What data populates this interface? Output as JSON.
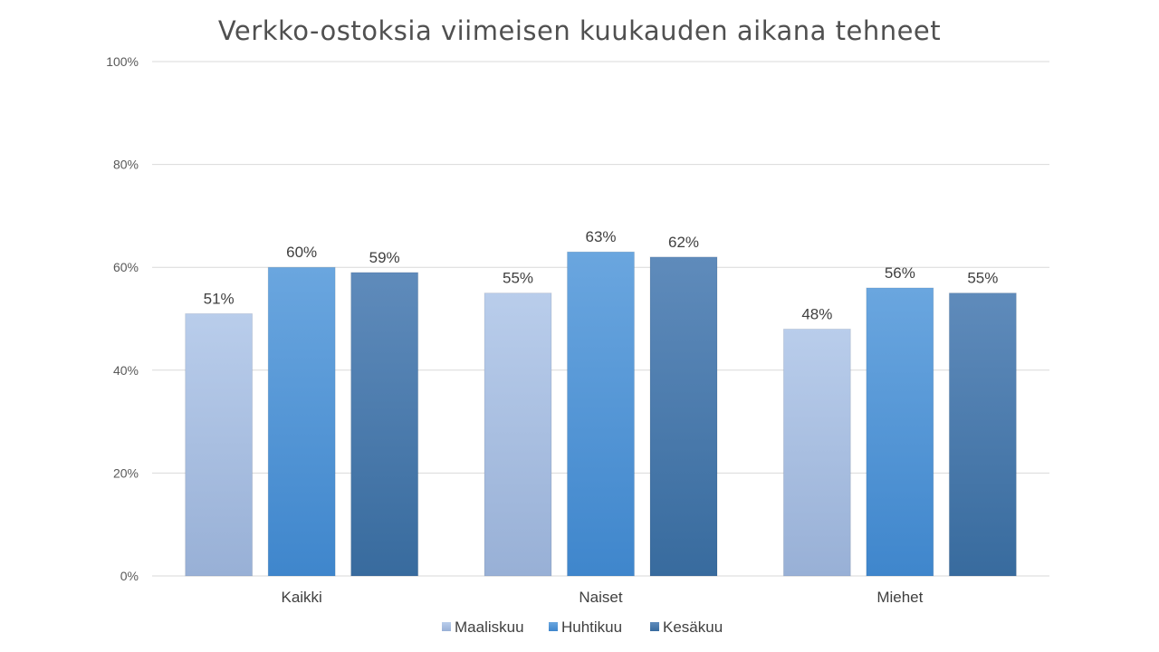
{
  "chart_data": {
    "type": "bar",
    "title": "Verkko-ostoksia viimeisen kuukauden aikana tehneet",
    "categories": [
      "Kaikki",
      "Naiset",
      "Miehet"
    ],
    "series": [
      {
        "name": "Maaliskuu",
        "values": [
          51,
          55,
          48
        ],
        "color": "#a9c0e3"
      },
      {
        "name": "Huhtikuu",
        "values": [
          60,
          63,
          56
        ],
        "color": "#4e95d9"
      },
      {
        "name": "Kesäkuu",
        "values": [
          59,
          62,
          55
        ],
        "color": "#4576ab"
      }
    ],
    "ylim": [
      0,
      100
    ],
    "yticks": [
      0,
      20,
      40,
      60,
      80,
      100
    ],
    "value_suffix": "%",
    "grid": true,
    "legend_position": "bottom"
  }
}
